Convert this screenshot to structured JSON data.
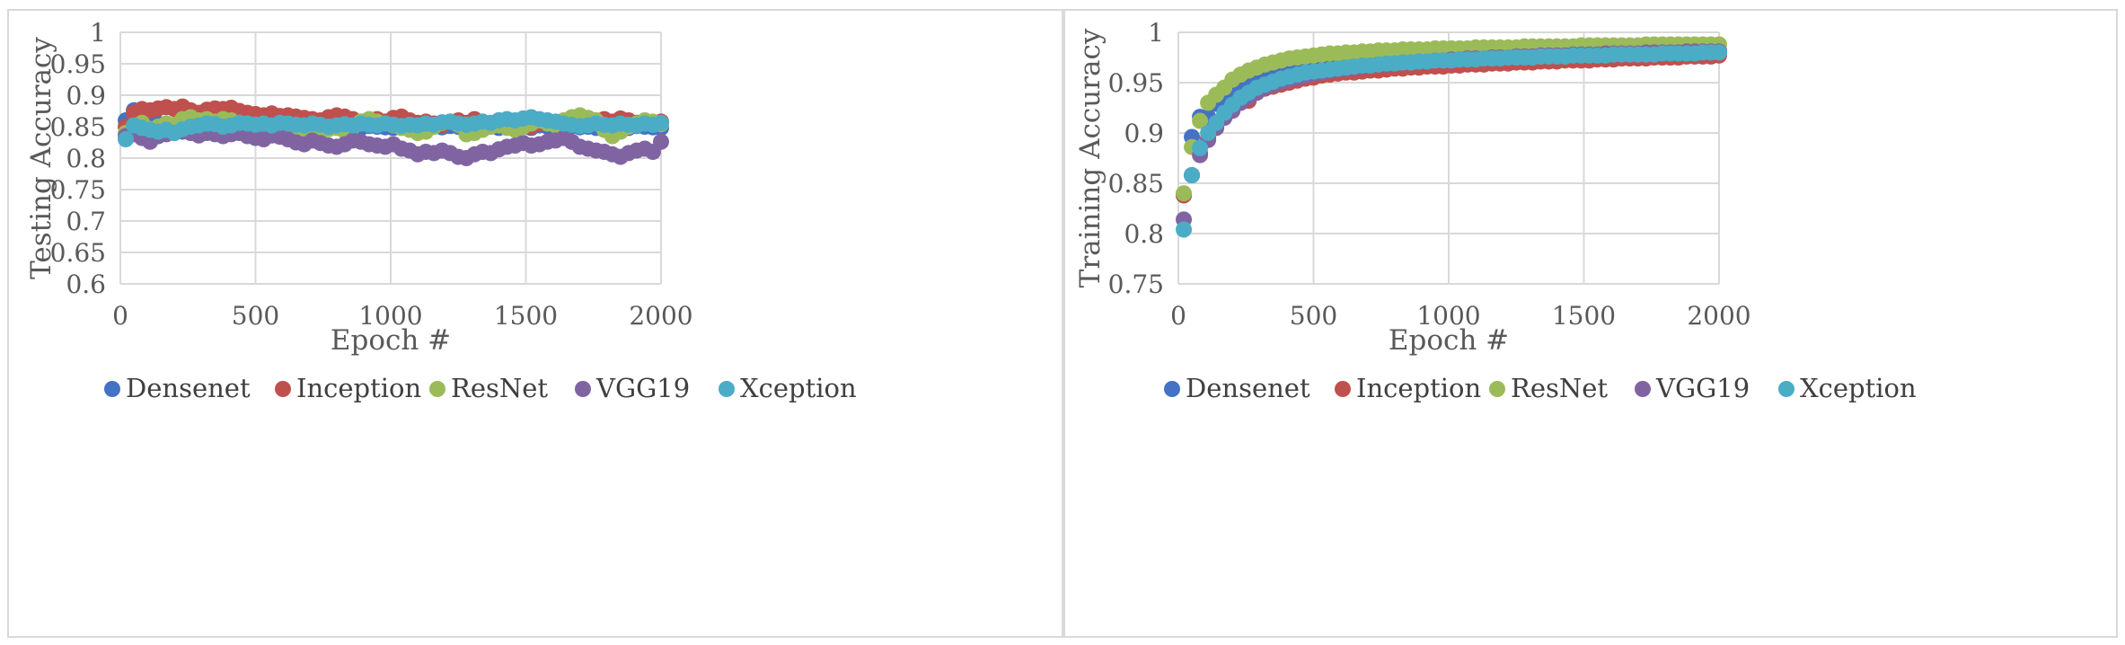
{
  "colors": {
    "Densenet": "#4472c4",
    "Inception": "#c0504d",
    "ResNet": "#9bbb59",
    "VGG19": "#8064a2",
    "Xception": "#4bacc6",
    "grid": "#d9d9d9",
    "text": "#595959"
  },
  "chart_data": [
    {
      "type": "scatter",
      "title": "",
      "xlabel": "Epoch #",
      "ylabel": "Testing Accuracy",
      "xlim": [
        0,
        2000
      ],
      "ylim": [
        0.6,
        1
      ],
      "xticks": [
        "0",
        "500",
        "1000",
        "1500",
        "2000"
      ],
      "yticks": [
        "0.6",
        "0.65",
        "0.7",
        "0.75",
        "0.8",
        "0.85",
        "0.9",
        "0.95",
        "1"
      ],
      "legend_position": "bottom",
      "x": [
        20,
        50,
        80,
        110,
        140,
        170,
        200,
        230,
        260,
        290,
        320,
        350,
        380,
        410,
        440,
        470,
        500,
        530,
        560,
        590,
        620,
        650,
        680,
        710,
        740,
        770,
        800,
        830,
        860,
        890,
        920,
        950,
        980,
        1010,
        1040,
        1070,
        1100,
        1130,
        1160,
        1190,
        1220,
        1250,
        1280,
        1310,
        1340,
        1370,
        1400,
        1430,
        1460,
        1490,
        1520,
        1550,
        1580,
        1610,
        1640,
        1670,
        1700,
        1730,
        1760,
        1790,
        1820,
        1850,
        1880,
        1910,
        1940,
        1970,
        2000
      ],
      "series": [
        {
          "name": "Densenet",
          "values": [
            0.86,
            0.876,
            0.865,
            0.86,
            0.855,
            0.853,
            0.852,
            0.85,
            0.849,
            0.85,
            0.848,
            0.847,
            0.852,
            0.85,
            0.849,
            0.848,
            0.85,
            0.848,
            0.852,
            0.85,
            0.849,
            0.848,
            0.851,
            0.849,
            0.85,
            0.848,
            0.852,
            0.849,
            0.85,
            0.848,
            0.851,
            0.85,
            0.849,
            0.848,
            0.852,
            0.85,
            0.849,
            0.848,
            0.85,
            0.849,
            0.851,
            0.85,
            0.848,
            0.852,
            0.849,
            0.85,
            0.848,
            0.851,
            0.849,
            0.85,
            0.848,
            0.852,
            0.85,
            0.849,
            0.848,
            0.851,
            0.849,
            0.85,
            0.848,
            0.852,
            0.85,
            0.849,
            0.848,
            0.851,
            0.85,
            0.849,
            0.848
          ]
        },
        {
          "name": "Inception",
          "values": [
            0.85,
            0.872,
            0.878,
            0.876,
            0.879,
            0.881,
            0.878,
            0.882,
            0.876,
            0.872,
            0.877,
            0.879,
            0.878,
            0.88,
            0.875,
            0.872,
            0.87,
            0.868,
            0.871,
            0.867,
            0.868,
            0.866,
            0.864,
            0.862,
            0.86,
            0.865,
            0.868,
            0.866,
            0.862,
            0.858,
            0.86,
            0.862,
            0.858,
            0.864,
            0.866,
            0.86,
            0.856,
            0.858,
            0.855,
            0.852,
            0.858,
            0.86,
            0.856,
            0.862,
            0.858,
            0.855,
            0.86,
            0.858,
            0.855,
            0.852,
            0.85,
            0.855,
            0.858,
            0.853,
            0.856,
            0.86,
            0.856,
            0.858,
            0.86,
            0.862,
            0.858,
            0.863,
            0.86,
            0.856,
            0.858,
            0.856,
            0.858
          ]
        },
        {
          "name": "ResNet",
          "values": [
            0.84,
            0.852,
            0.856,
            0.846,
            0.85,
            0.855,
            0.853,
            0.862,
            0.865,
            0.86,
            0.862,
            0.858,
            0.862,
            0.86,
            0.856,
            0.855,
            0.853,
            0.85,
            0.848,
            0.845,
            0.84,
            0.842,
            0.838,
            0.835,
            0.84,
            0.846,
            0.848,
            0.843,
            0.85,
            0.858,
            0.862,
            0.858,
            0.855,
            0.852,
            0.848,
            0.845,
            0.84,
            0.842,
            0.85,
            0.856,
            0.858,
            0.853,
            0.838,
            0.84,
            0.845,
            0.85,
            0.852,
            0.848,
            0.845,
            0.85,
            0.855,
            0.86,
            0.855,
            0.852,
            0.86,
            0.865,
            0.868,
            0.864,
            0.86,
            0.845,
            0.835,
            0.842,
            0.85,
            0.855,
            0.86,
            0.858,
            0.854
          ]
        },
        {
          "name": "VGG19",
          "values": [
            0.835,
            0.838,
            0.832,
            0.826,
            0.835,
            0.838,
            0.84,
            0.842,
            0.84,
            0.836,
            0.84,
            0.838,
            0.835,
            0.838,
            0.84,
            0.835,
            0.832,
            0.83,
            0.836,
            0.834,
            0.83,
            0.825,
            0.822,
            0.828,
            0.824,
            0.82,
            0.818,
            0.822,
            0.828,
            0.826,
            0.822,
            0.82,
            0.818,
            0.822,
            0.815,
            0.812,
            0.806,
            0.81,
            0.808,
            0.812,
            0.808,
            0.802,
            0.8,
            0.806,
            0.81,
            0.808,
            0.814,
            0.818,
            0.82,
            0.824,
            0.82,
            0.822,
            0.826,
            0.828,
            0.832,
            0.826,
            0.818,
            0.815,
            0.812,
            0.81,
            0.806,
            0.802,
            0.808,
            0.812,
            0.815,
            0.81,
            0.826
          ]
        },
        {
          "name": "Xception",
          "values": [
            0.83,
            0.852,
            0.848,
            0.845,
            0.842,
            0.845,
            0.84,
            0.846,
            0.85,
            0.852,
            0.855,
            0.854,
            0.85,
            0.852,
            0.856,
            0.855,
            0.853,
            0.855,
            0.852,
            0.856,
            0.855,
            0.853,
            0.852,
            0.855,
            0.853,
            0.85,
            0.852,
            0.854,
            0.852,
            0.855,
            0.853,
            0.852,
            0.855,
            0.853,
            0.851,
            0.853,
            0.852,
            0.855,
            0.853,
            0.857,
            0.858,
            0.855,
            0.853,
            0.855,
            0.858,
            0.856,
            0.86,
            0.862,
            0.86,
            0.863,
            0.865,
            0.862,
            0.86,
            0.858,
            0.855,
            0.853,
            0.851,
            0.852,
            0.855,
            0.853,
            0.852,
            0.855,
            0.853,
            0.852,
            0.855,
            0.853,
            0.856
          ]
        }
      ]
    },
    {
      "type": "scatter",
      "title": "",
      "xlabel": "Epoch #",
      "ylabel": "Training Accuracy",
      "xlim": [
        0,
        2000
      ],
      "ylim": [
        0.75,
        1
      ],
      "xticks": [
        "0",
        "500",
        "1000",
        "1500",
        "2000"
      ],
      "yticks": [
        "0.75",
        "0.8",
        "0.85",
        "0.9",
        "0.95",
        "1"
      ],
      "legend_position": "bottom",
      "x": [
        20,
        50,
        80,
        110,
        140,
        170,
        200,
        230,
        260,
        290,
        320,
        350,
        380,
        410,
        440,
        470,
        500,
        530,
        560,
        590,
        620,
        650,
        680,
        710,
        740,
        770,
        800,
        830,
        860,
        890,
        920,
        950,
        980,
        1010,
        1040,
        1070,
        1100,
        1130,
        1160,
        1190,
        1220,
        1250,
        1280,
        1310,
        1340,
        1370,
        1400,
        1430,
        1460,
        1490,
        1520,
        1550,
        1580,
        1610,
        1640,
        1670,
        1700,
        1730,
        1760,
        1790,
        1820,
        1850,
        1880,
        1910,
        1940,
        1970,
        2000
      ],
      "series": [
        {
          "name": "Densenet",
          "values": [
            0.838,
            0.896,
            0.916,
            0.916,
            0.929,
            0.937,
            0.942,
            0.946,
            0.952,
            0.955,
            0.958,
            0.96,
            0.962,
            0.964,
            0.965,
            0.966,
            0.967,
            0.968,
            0.969,
            0.97,
            0.97,
            0.971,
            0.972,
            0.972,
            0.973,
            0.973,
            0.974,
            0.974,
            0.975,
            0.975,
            0.975,
            0.976,
            0.976,
            0.976,
            0.977,
            0.977,
            0.977,
            0.977,
            0.978,
            0.978,
            0.978,
            0.978,
            0.978,
            0.979,
            0.979,
            0.979,
            0.979,
            0.979,
            0.98,
            0.98,
            0.98,
            0.98,
            0.98,
            0.98,
            0.98,
            0.98,
            0.981,
            0.981,
            0.981,
            0.981,
            0.981,
            0.981,
            0.981,
            0.982,
            0.982,
            0.982,
            0.982
          ]
        },
        {
          "name": "Inception",
          "values": [
            0.838,
            0.858,
            0.88,
            0.895,
            0.91,
            0.918,
            0.925,
            0.93,
            0.932,
            0.94,
            0.944,
            0.946,
            0.948,
            0.95,
            0.952,
            0.954,
            0.955,
            0.957,
            0.958,
            0.959,
            0.96,
            0.96,
            0.961,
            0.962,
            0.962,
            0.963,
            0.964,
            0.964,
            0.965,
            0.965,
            0.966,
            0.966,
            0.966,
            0.967,
            0.967,
            0.968,
            0.968,
            0.968,
            0.969,
            0.969,
            0.969,
            0.97,
            0.97,
            0.97,
            0.971,
            0.971,
            0.971,
            0.972,
            0.972,
            0.972,
            0.972,
            0.973,
            0.973,
            0.973,
            0.974,
            0.974,
            0.974,
            0.974,
            0.975,
            0.975,
            0.975,
            0.975,
            0.976,
            0.976,
            0.976,
            0.976,
            0.977
          ]
        },
        {
          "name": "ResNet",
          "values": [
            0.84,
            0.886,
            0.912,
            0.93,
            0.938,
            0.945,
            0.953,
            0.958,
            0.962,
            0.965,
            0.968,
            0.97,
            0.972,
            0.974,
            0.975,
            0.976,
            0.977,
            0.978,
            0.979,
            0.979,
            0.98,
            0.98,
            0.981,
            0.981,
            0.982,
            0.982,
            0.982,
            0.983,
            0.983,
            0.983,
            0.983,
            0.984,
            0.984,
            0.984,
            0.984,
            0.984,
            0.985,
            0.985,
            0.985,
            0.985,
            0.985,
            0.985,
            0.986,
            0.986,
            0.986,
            0.986,
            0.986,
            0.986,
            0.986,
            0.987,
            0.987,
            0.987,
            0.987,
            0.987,
            0.987,
            0.987,
            0.987,
            0.988,
            0.988,
            0.988,
            0.988,
            0.988,
            0.988,
            0.988,
            0.988,
            0.988,
            0.988
          ]
        },
        {
          "name": "VGG19",
          "values": [
            0.814,
            0.858,
            0.878,
            0.893,
            0.905,
            0.915,
            0.922,
            0.93,
            0.935,
            0.94,
            0.945,
            0.948,
            0.951,
            0.953,
            0.955,
            0.957,
            0.959,
            0.96,
            0.962,
            0.963,
            0.964,
            0.965,
            0.966,
            0.967,
            0.968,
            0.968,
            0.969,
            0.97,
            0.97,
            0.971,
            0.971,
            0.972,
            0.972,
            0.973,
            0.973,
            0.974,
            0.974,
            0.974,
            0.975,
            0.975,
            0.975,
            0.976,
            0.976,
            0.976,
            0.977,
            0.977,
            0.977,
            0.977,
            0.978,
            0.978,
            0.978,
            0.978,
            0.979,
            0.979,
            0.979,
            0.979,
            0.979,
            0.98,
            0.98,
            0.98,
            0.98,
            0.98,
            0.981,
            0.981,
            0.981,
            0.981,
            0.981
          ]
        },
        {
          "name": "Xception",
          "values": [
            0.804,
            0.858,
            0.885,
            0.9,
            0.91,
            0.92,
            0.928,
            0.935,
            0.94,
            0.945,
            0.948,
            0.951,
            0.954,
            0.956,
            0.958,
            0.96,
            0.961,
            0.962,
            0.963,
            0.964,
            0.965,
            0.966,
            0.967,
            0.967,
            0.968,
            0.969,
            0.969,
            0.97,
            0.97,
            0.971,
            0.971,
            0.972,
            0.972,
            0.972,
            0.973,
            0.973,
            0.973,
            0.974,
            0.974,
            0.974,
            0.975,
            0.975,
            0.975,
            0.975,
            0.976,
            0.976,
            0.976,
            0.976,
            0.977,
            0.977,
            0.977,
            0.977,
            0.977,
            0.978,
            0.978,
            0.978,
            0.978,
            0.978,
            0.978,
            0.979,
            0.979,
            0.979,
            0.979,
            0.979,
            0.98,
            0.98,
            0.98
          ]
        }
      ]
    }
  ]
}
